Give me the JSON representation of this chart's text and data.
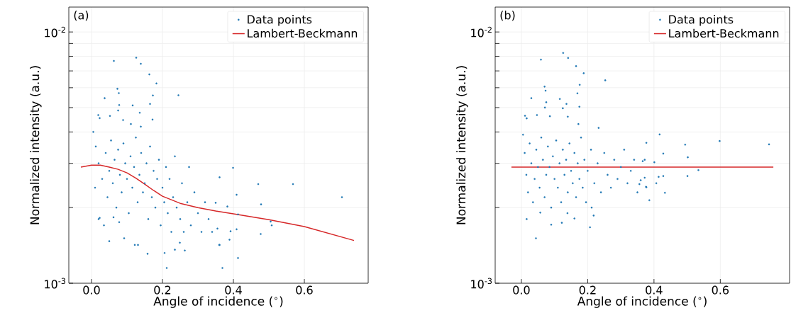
{
  "chart_data": [
    {
      "type": "scatter",
      "xlabel": "Angle of incidence ($^{∘}$)",
      "ylabel": "Normalized intensity (a.u.)",
      "annotations": [
        "(a)"
      ],
      "log": "y",
      "grid": true,
      "legend": "top right",
      "xlim": [
        -0.064,
        0.78
      ],
      "ylim": [
        0.001,
        0.01256
      ],
      "xticks": [
        {
          "value": 0,
          "label": "0.0"
        },
        {
          "value": 0.2,
          "label": "0.2"
        },
        {
          "value": 0.4,
          "label": "0.4"
        },
        {
          "value": 0.6,
          "label": "0.6"
        }
      ],
      "yticks": [
        {
          "value": 0.001,
          "label": "10$^{-3}$"
        },
        {
          "value": 0.002,
          "label": null
        },
        {
          "value": 0.003,
          "label": null
        },
        {
          "value": 0.004,
          "label": null
        },
        {
          "value": 0.005,
          "label": null
        },
        {
          "value": 0.006,
          "label": null
        },
        {
          "value": 0.007,
          "label": null
        },
        {
          "value": 0.008,
          "label": null
        },
        {
          "value": 0.009,
          "label": null
        },
        {
          "value": 0.01,
          "label": "10$^{-2}$"
        }
      ],
      "series": [
        {
          "name": "Data points",
          "type": "scatter",
          "marker": "circle",
          "color": "#1f77b4",
          "x": [
            0.063,
            0.126,
            0.139,
            0.163,
            0.183,
            0.073,
            0.077,
            0.037,
            0.173,
            0.245,
            0.078,
            0.116,
            0.165,
            0.075,
            0.136,
            0.019,
            0.023,
            0.052,
            0.089,
            0.172,
            0.111,
            0.139,
            0.05,
            0.092,
            0.122,
            0.131,
            0.158,
            0.206,
            0.212,
            0.369,
            0.36,
            0.023,
            0.062,
            0.078,
            0.235,
            0.263,
            0.249,
            0.399,
            0.361,
            0.47,
            0.568,
            0.706,
            0.409,
            0.478,
            0.35,
            0.383,
            0.413,
            0.505,
            0.508,
            0.355,
            0.392,
            0.409,
            0.477,
            0.389,
            0.361,
            0.413,
            0.005,
            0.012,
            0.02,
            0.03,
            0.04,
            0.045,
            0.05,
            0.055,
            0.06,
            0.065,
            0.07,
            0.075,
            0.08,
            0.085,
            0.09,
            0.095,
            0.1,
            0.105,
            0.11,
            0.115,
            0.12,
            0.125,
            0.13,
            0.135,
            0.14,
            0.145,
            0.15,
            0.155,
            0.16,
            0.165,
            0.17,
            0.175,
            0.18,
            0.185,
            0.19,
            0.195,
            0.2,
            0.205,
            0.21,
            0.215,
            0.22,
            0.225,
            0.23,
            0.235,
            0.24,
            0.25,
            0.255,
            0.26,
            0.27,
            0.275,
            0.28,
            0.29,
            0.3,
            0.31,
            0.32,
            0.33,
            0.34,
            0.02,
            0.01,
            0.035
          ],
          "values": [
            0.00767,
            0.0079,
            0.00747,
            0.00678,
            0.00624,
            0.00594,
            0.00571,
            0.00545,
            0.00559,
            0.0056,
            0.00512,
            0.0051,
            0.00517,
            0.00487,
            0.00477,
            0.00467,
            0.00454,
            0.00463,
            0.00446,
            0.00448,
            0.0043,
            0.0042,
            0.00147,
            0.00151,
            0.00142,
            0.00142,
            0.00131,
            0.00132,
            0.00115,
            0.00115,
            0.00142,
            0.00182,
            0.00183,
            0.00175,
            0.00136,
            0.00135,
            0.00145,
            0.00288,
            0.00264,
            0.00248,
            0.00248,
            0.0022,
            0.00225,
            0.00206,
            0.00209,
            0.00202,
            0.00188,
            0.00176,
            0.0017,
            0.00165,
            0.00161,
            0.00164,
            0.00157,
            0.00149,
            0.00142,
            0.00126,
            0.004,
            0.0035,
            0.003,
            0.0026,
            0.0033,
            0.0022,
            0.0028,
            0.0037,
            0.0025,
            0.0031,
            0.002,
            0.0034,
            0.0027,
            0.0023,
            0.0036,
            0.003,
            0.0026,
            0.0019,
            0.0032,
            0.0024,
            0.0029,
            0.0038,
            0.0021,
            0.0027,
            0.0033,
            0.0023,
            0.0025,
            0.003,
            0.0018,
            0.0035,
            0.0022,
            0.0028,
            0.002,
            0.0026,
            0.0031,
            0.0017,
            0.0024,
            0.0021,
            0.0029,
            0.0019,
            0.0026,
            0.0016,
            0.0022,
            0.0032,
            0.002,
            0.0018,
            0.0025,
            0.0016,
            0.0021,
            0.0029,
            0.0017,
            0.0023,
            0.0019,
            0.0016,
            0.0021,
            0.0018,
            0.0016,
            0.0018,
            0.0024,
            0.0017
          ]
        },
        {
          "name": "Lambert-Beckmann",
          "type": "line",
          "marker": "none",
          "color": "#d62728",
          "x": [
            -0.03,
            0,
            0.025,
            0.05,
            0.075,
            0.1,
            0.125,
            0.15,
            0.175,
            0.2,
            0.25,
            0.3,
            0.35,
            0.4,
            0.5,
            0.6,
            0.74
          ],
          "values": [
            0.0029,
            0.00295,
            0.00295,
            0.0029,
            0.00284,
            0.00275,
            0.00262,
            0.00248,
            0.00234,
            0.00222,
            0.00208,
            0.002,
            0.00194,
            0.00189,
            0.00179,
            0.00168,
            0.00148
          ]
        }
      ]
    },
    {
      "type": "scatter",
      "xlabel": "Angle of incidence ($^{∘}$)",
      "ylabel": "Normalized intensity (a.u.)",
      "annotations": [
        "(b)"
      ],
      "log": "y",
      "grid": true,
      "legend": "top right",
      "xlim": [
        -0.079,
        0.809
      ],
      "ylim": [
        0.001,
        0.01256
      ],
      "xticks": [
        {
          "value": 0,
          "label": "0.0"
        },
        {
          "value": 0.2,
          "label": "0.2"
        },
        {
          "value": 0.4,
          "label": "0.4"
        },
        {
          "value": 0.6,
          "label": "0.6"
        }
      ],
      "yticks": [
        {
          "value": 0.001,
          "label": "10$^{-3}$"
        },
        {
          "value": 0.002,
          "label": null
        },
        {
          "value": 0.003,
          "label": null
        },
        {
          "value": 0.004,
          "label": null
        },
        {
          "value": 0.005,
          "label": null
        },
        {
          "value": 0.006,
          "label": null
        },
        {
          "value": 0.007,
          "label": null
        },
        {
          "value": 0.008,
          "label": null
        },
        {
          "value": 0.009,
          "label": null
        },
        {
          "value": 0.01,
          "label": "10$^{-2}$"
        }
      ],
      "series": [
        {
          "name": "Data points",
          "type": "scatter",
          "marker": "circle",
          "color": "#1f77b4",
          "x": [
            0.126,
            0.141,
            0.059,
            0.165,
            0.188,
            0.253,
            0.07,
            0.073,
            0.176,
            0.03,
            0.169,
            0.075,
            0.116,
            0.136,
            0.175,
            0.071,
            0.125,
            0.011,
            0.016,
            0.047,
            0.086,
            0.14,
            0.172,
            0.233,
            0.044,
            0.09,
            0.122,
            0.16,
            0.207,
            0.218,
            0.212,
            0.016,
            0.057,
            0.139,
            0.386,
            0.376,
            0.417,
            0.377,
            0.494,
            0.598,
            0.747,
            0.428,
            0.502,
            0.366,
            0.401,
            0.372,
            0.534,
            0.501,
            0.372,
            0.414,
            0.428,
            0.36,
            0.356,
            0.407,
            0.377,
            0.433,
            0.005,
            0.01,
            0.015,
            0.02,
            0.025,
            0.03,
            0.035,
            0.04,
            0.045,
            0.05,
            0.055,
            0.06,
            0.065,
            0.07,
            0.075,
            0.08,
            0.085,
            0.09,
            0.095,
            0.1,
            0.105,
            0.11,
            0.115,
            0.12,
            0.125,
            0.13,
            0.135,
            0.14,
            0.145,
            0.15,
            0.155,
            0.16,
            0.165,
            0.17,
            0.175,
            0.18,
            0.185,
            0.19,
            0.195,
            0.2,
            0.21,
            0.22,
            0.23,
            0.24,
            0.25,
            0.26,
            0.27,
            0.28,
            0.29,
            0.3,
            0.31,
            0.32,
            0.33,
            0.34,
            0.35
          ],
          "values": [
            0.00825,
            0.00788,
            0.00776,
            0.00731,
            0.00685,
            0.00642,
            0.00606,
            0.00584,
            0.00616,
            0.00545,
            0.0057,
            0.00525,
            0.00541,
            0.00517,
            0.00504,
            0.005,
            0.00497,
            0.00464,
            0.00453,
            0.00467,
            0.00462,
            0.0046,
            0.0043,
            0.00415,
            0.00151,
            0.00171,
            0.00174,
            0.00181,
            0.00167,
            0.00186,
            0.002,
            0.0018,
            0.00191,
            0.0019,
            0.00214,
            0.00242,
            0.00391,
            0.00362,
            0.00356,
            0.00368,
            0.00357,
            0.00328,
            0.00317,
            0.00306,
            0.00303,
            0.0031,
            0.00282,
            0.00267,
            0.00263,
            0.00265,
            0.00267,
            0.00257,
            0.00248,
            0.0025,
            0.00241,
            0.00229,
            0.0039,
            0.0033,
            0.0027,
            0.0023,
            0.0036,
            0.003,
            0.0021,
            0.0026,
            0.0034,
            0.0029,
            0.0024,
            0.0038,
            0.0031,
            0.0022,
            0.0027,
            0.0035,
            0.0029,
            0.002,
            0.0032,
            0.0026,
            0.0037,
            0.0024,
            0.003,
            0.0021,
            0.0034,
            0.0027,
            0.0031,
            0.0023,
            0.0036,
            0.0028,
            0.0025,
            0.0033,
            0.0022,
            0.003,
            0.0026,
            0.0038,
            0.0024,
            0.0031,
            0.0021,
            0.0028,
            0.0034,
            0.0025,
            0.003,
            0.0023,
            0.0033,
            0.0027,
            0.0024,
            0.0031,
            0.0026,
            0.0029,
            0.0034,
            0.0025,
            0.0028,
            0.0031,
            0.0023
          ]
        },
        {
          "name": "Lambert-Beckmann",
          "type": "line",
          "marker": "none",
          "color": "#d62728",
          "x": [
            -0.03,
            0.76
          ],
          "values": [
            0.0029,
            0.0029
          ]
        }
      ]
    }
  ]
}
